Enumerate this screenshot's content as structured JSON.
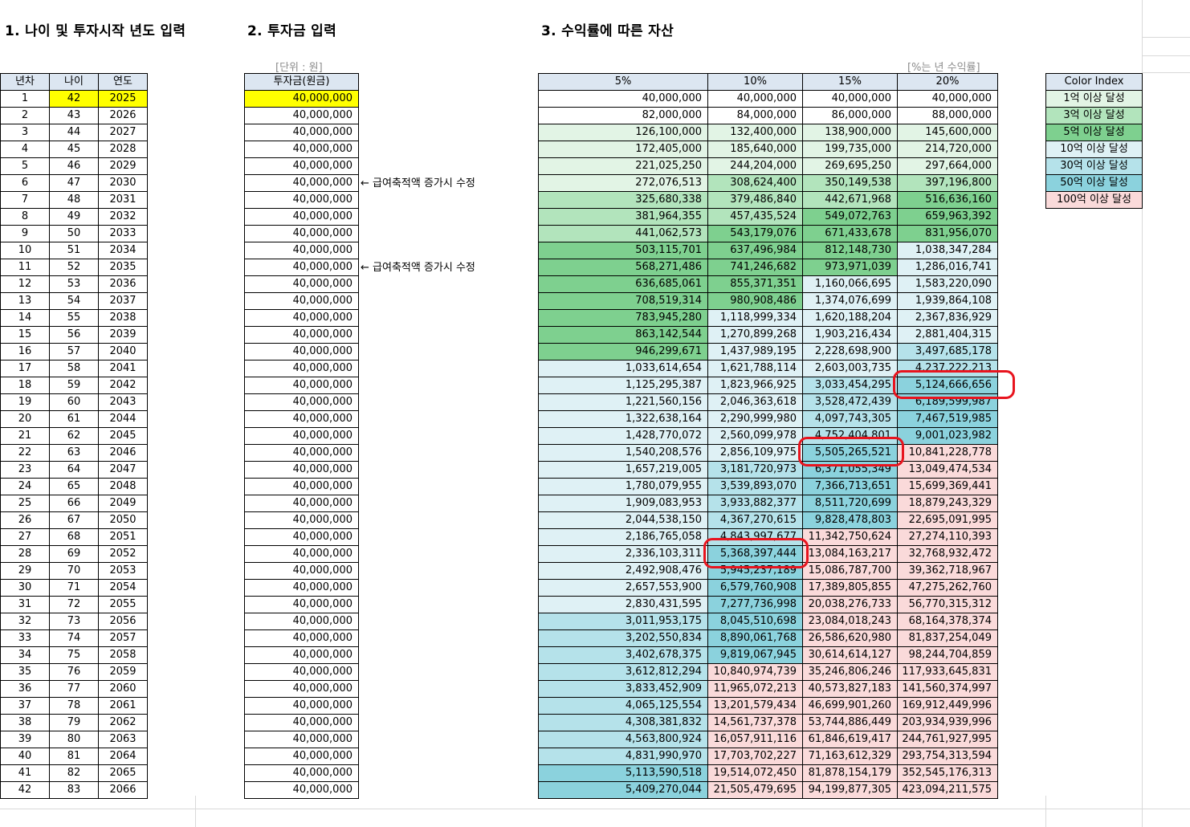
{
  "headings": {
    "h1": "1. 나이 및 투자시작 년도 입력",
    "h2": "2. 투자금 입력",
    "h3": "3. 수익률에 따른 자산"
  },
  "notes": {
    "unit": "[단위 : 원]",
    "rate": "[%는 년 수익률]",
    "adjust": "← 급여축적액 증가시 수정"
  },
  "colors": {
    "header": "#dce6f1",
    "highlight": "#ffff00",
    "lv1": "#e2f4e5",
    "lv2": "#b2e4bc",
    "lv3": "#7ed08f",
    "lv4": "#dff1f5",
    "lv5": "#b5e2ea",
    "lv6": "#8bd2dd",
    "lv7": "#fadada",
    "circle": "#e8141e"
  },
  "age_table": {
    "headers": [
      "년차",
      "나이",
      "연도"
    ],
    "rows": [
      [
        "1",
        "42",
        "2025"
      ],
      [
        "2",
        "43",
        "2026"
      ],
      [
        "3",
        "44",
        "2027"
      ],
      [
        "4",
        "45",
        "2028"
      ],
      [
        "5",
        "46",
        "2029"
      ],
      [
        "6",
        "47",
        "2030"
      ],
      [
        "7",
        "48",
        "2031"
      ],
      [
        "8",
        "49",
        "2032"
      ],
      [
        "9",
        "50",
        "2033"
      ],
      [
        "10",
        "51",
        "2034"
      ],
      [
        "11",
        "52",
        "2035"
      ],
      [
        "12",
        "53",
        "2036"
      ],
      [
        "13",
        "54",
        "2037"
      ],
      [
        "14",
        "55",
        "2038"
      ],
      [
        "15",
        "56",
        "2039"
      ],
      [
        "16",
        "57",
        "2040"
      ],
      [
        "17",
        "58",
        "2041"
      ],
      [
        "18",
        "59",
        "2042"
      ],
      [
        "19",
        "60",
        "2043"
      ],
      [
        "20",
        "61",
        "2044"
      ],
      [
        "21",
        "62",
        "2045"
      ],
      [
        "22",
        "63",
        "2046"
      ],
      [
        "23",
        "64",
        "2047"
      ],
      [
        "24",
        "65",
        "2048"
      ],
      [
        "25",
        "66",
        "2049"
      ],
      [
        "26",
        "67",
        "2050"
      ],
      [
        "27",
        "68",
        "2051"
      ],
      [
        "28",
        "69",
        "2052"
      ],
      [
        "29",
        "70",
        "2053"
      ],
      [
        "30",
        "71",
        "2054"
      ],
      [
        "31",
        "72",
        "2055"
      ],
      [
        "32",
        "73",
        "2056"
      ],
      [
        "33",
        "74",
        "2057"
      ],
      [
        "34",
        "75",
        "2058"
      ],
      [
        "35",
        "76",
        "2059"
      ],
      [
        "36",
        "77",
        "2060"
      ],
      [
        "37",
        "78",
        "2061"
      ],
      [
        "38",
        "79",
        "2062"
      ],
      [
        "39",
        "80",
        "2063"
      ],
      [
        "40",
        "81",
        "2064"
      ],
      [
        "41",
        "82",
        "2065"
      ],
      [
        "42",
        "83",
        "2066"
      ]
    ]
  },
  "invest_table": {
    "header": "투자금(원금)",
    "value": "40,000,000",
    "count": 42
  },
  "assets_table": {
    "headers": [
      "5%",
      "10%",
      "15%",
      "20%"
    ],
    "rows": [
      [
        "40,000,000",
        "40,000,000",
        "40,000,000",
        "40,000,000"
      ],
      [
        "82,000,000",
        "84,000,000",
        "86,000,000",
        "88,000,000"
      ],
      [
        "126,100,000",
        "132,400,000",
        "138,900,000",
        "145,600,000"
      ],
      [
        "172,405,000",
        "185,640,000",
        "199,735,000",
        "214,720,000"
      ],
      [
        "221,025,250",
        "244,204,000",
        "269,695,250",
        "297,664,000"
      ],
      [
        "272,076,513",
        "308,624,400",
        "350,149,538",
        "397,196,800"
      ],
      [
        "325,680,338",
        "379,486,840",
        "442,671,968",
        "516,636,160"
      ],
      [
        "381,964,355",
        "457,435,524",
        "549,072,763",
        "659,963,392"
      ],
      [
        "441,062,573",
        "543,179,076",
        "671,433,678",
        "831,956,070"
      ],
      [
        "503,115,701",
        "637,496,984",
        "812,148,730",
        "1,038,347,284"
      ],
      [
        "568,271,486",
        "741,246,682",
        "973,971,039",
        "1,286,016,741"
      ],
      [
        "636,685,061",
        "855,371,351",
        "1,160,066,695",
        "1,583,220,090"
      ],
      [
        "708,519,314",
        "980,908,486",
        "1,374,076,699",
        "1,939,864,108"
      ],
      [
        "783,945,280",
        "1,118,999,334",
        "1,620,188,204",
        "2,367,836,929"
      ],
      [
        "863,142,544",
        "1,270,899,268",
        "1,903,216,434",
        "2,881,404,315"
      ],
      [
        "946,299,671",
        "1,437,989,195",
        "2,228,698,900",
        "3,497,685,178"
      ],
      [
        "1,033,614,654",
        "1,621,788,114",
        "2,603,003,735",
        "4,237,222,213"
      ],
      [
        "1,125,295,387",
        "1,823,966,925",
        "3,033,454,295",
        "5,124,666,656"
      ],
      [
        "1,221,560,156",
        "2,046,363,618",
        "3,528,472,439",
        "6,189,599,987"
      ],
      [
        "1,322,638,164",
        "2,290,999,980",
        "4,097,743,305",
        "7,467,519,985"
      ],
      [
        "1,428,770,072",
        "2,560,099,978",
        "4,752,404,801",
        "9,001,023,982"
      ],
      [
        "1,540,208,576",
        "2,856,109,975",
        "5,505,265,521",
        "10,841,228,778"
      ],
      [
        "1,657,219,005",
        "3,181,720,973",
        "6,371,055,349",
        "13,049,474,534"
      ],
      [
        "1,780,079,955",
        "3,539,893,070",
        "7,366,713,651",
        "15,699,369,441"
      ],
      [
        "1,909,083,953",
        "3,933,882,377",
        "8,511,720,699",
        "18,879,243,329"
      ],
      [
        "2,044,538,150",
        "4,367,270,615",
        "9,828,478,803",
        "22,695,091,995"
      ],
      [
        "2,186,765,058",
        "4,843,997,677",
        "11,342,750,624",
        "27,274,110,393"
      ],
      [
        "2,336,103,311",
        "5,368,397,444",
        "13,084,163,217",
        "32,768,932,472"
      ],
      [
        "2,492,908,476",
        "5,945,237,189",
        "15,086,787,700",
        "39,362,718,967"
      ],
      [
        "2,657,553,900",
        "6,579,760,908",
        "17,389,805,855",
        "47,275,262,760"
      ],
      [
        "2,830,431,595",
        "7,277,736,998",
        "20,038,276,733",
        "56,770,315,312"
      ],
      [
        "3,011,953,175",
        "8,045,510,698",
        "23,084,018,243",
        "68,164,378,374"
      ],
      [
        "3,202,550,834",
        "8,890,061,768",
        "26,586,620,980",
        "81,837,254,049"
      ],
      [
        "3,402,678,375",
        "9,819,067,945",
        "30,614,614,127",
        "98,244,704,859"
      ],
      [
        "3,612,812,294",
        "10,840,974,739",
        "35,246,806,246",
        "117,933,645,831"
      ],
      [
        "3,833,452,909",
        "11,965,072,213",
        "40,573,827,183",
        "141,560,374,997"
      ],
      [
        "4,065,125,554",
        "13,201,579,434",
        "46,699,901,260",
        "169,912,449,996"
      ],
      [
        "4,308,381,832",
        "14,561,737,378",
        "53,744,886,449",
        "203,934,939,996"
      ],
      [
        "4,563,800,924",
        "16,057,911,116",
        "61,846,619,417",
        "244,761,927,995"
      ],
      [
        "4,831,990,970",
        "17,703,702,227",
        "71,163,612,329",
        "293,754,313,594"
      ],
      [
        "5,113,590,518",
        "19,514,072,450",
        "81,878,154,179",
        "352,545,176,313"
      ],
      [
        "5,409,270,044",
        "21,505,479,695",
        "94,199,877,305",
        "423,094,211,575"
      ]
    ]
  },
  "color_index": {
    "header": "Color Index",
    "items": [
      {
        "label": "1억 이상 달성",
        "color": "#e2f4e5"
      },
      {
        "label": "3억 이상 달성",
        "color": "#b2e4bc"
      },
      {
        "label": "5억 이상 달성",
        "color": "#7ed08f"
      },
      {
        "label": "10억 이상 달성",
        "color": "#dff1f5"
      },
      {
        "label": "30억 이상 달성",
        "color": "#b5e2ea"
      },
      {
        "label": "50억 이상 달성",
        "color": "#8bd2dd"
      },
      {
        "label": "100억 이상 달성",
        "color": "#fadada"
      }
    ]
  }
}
